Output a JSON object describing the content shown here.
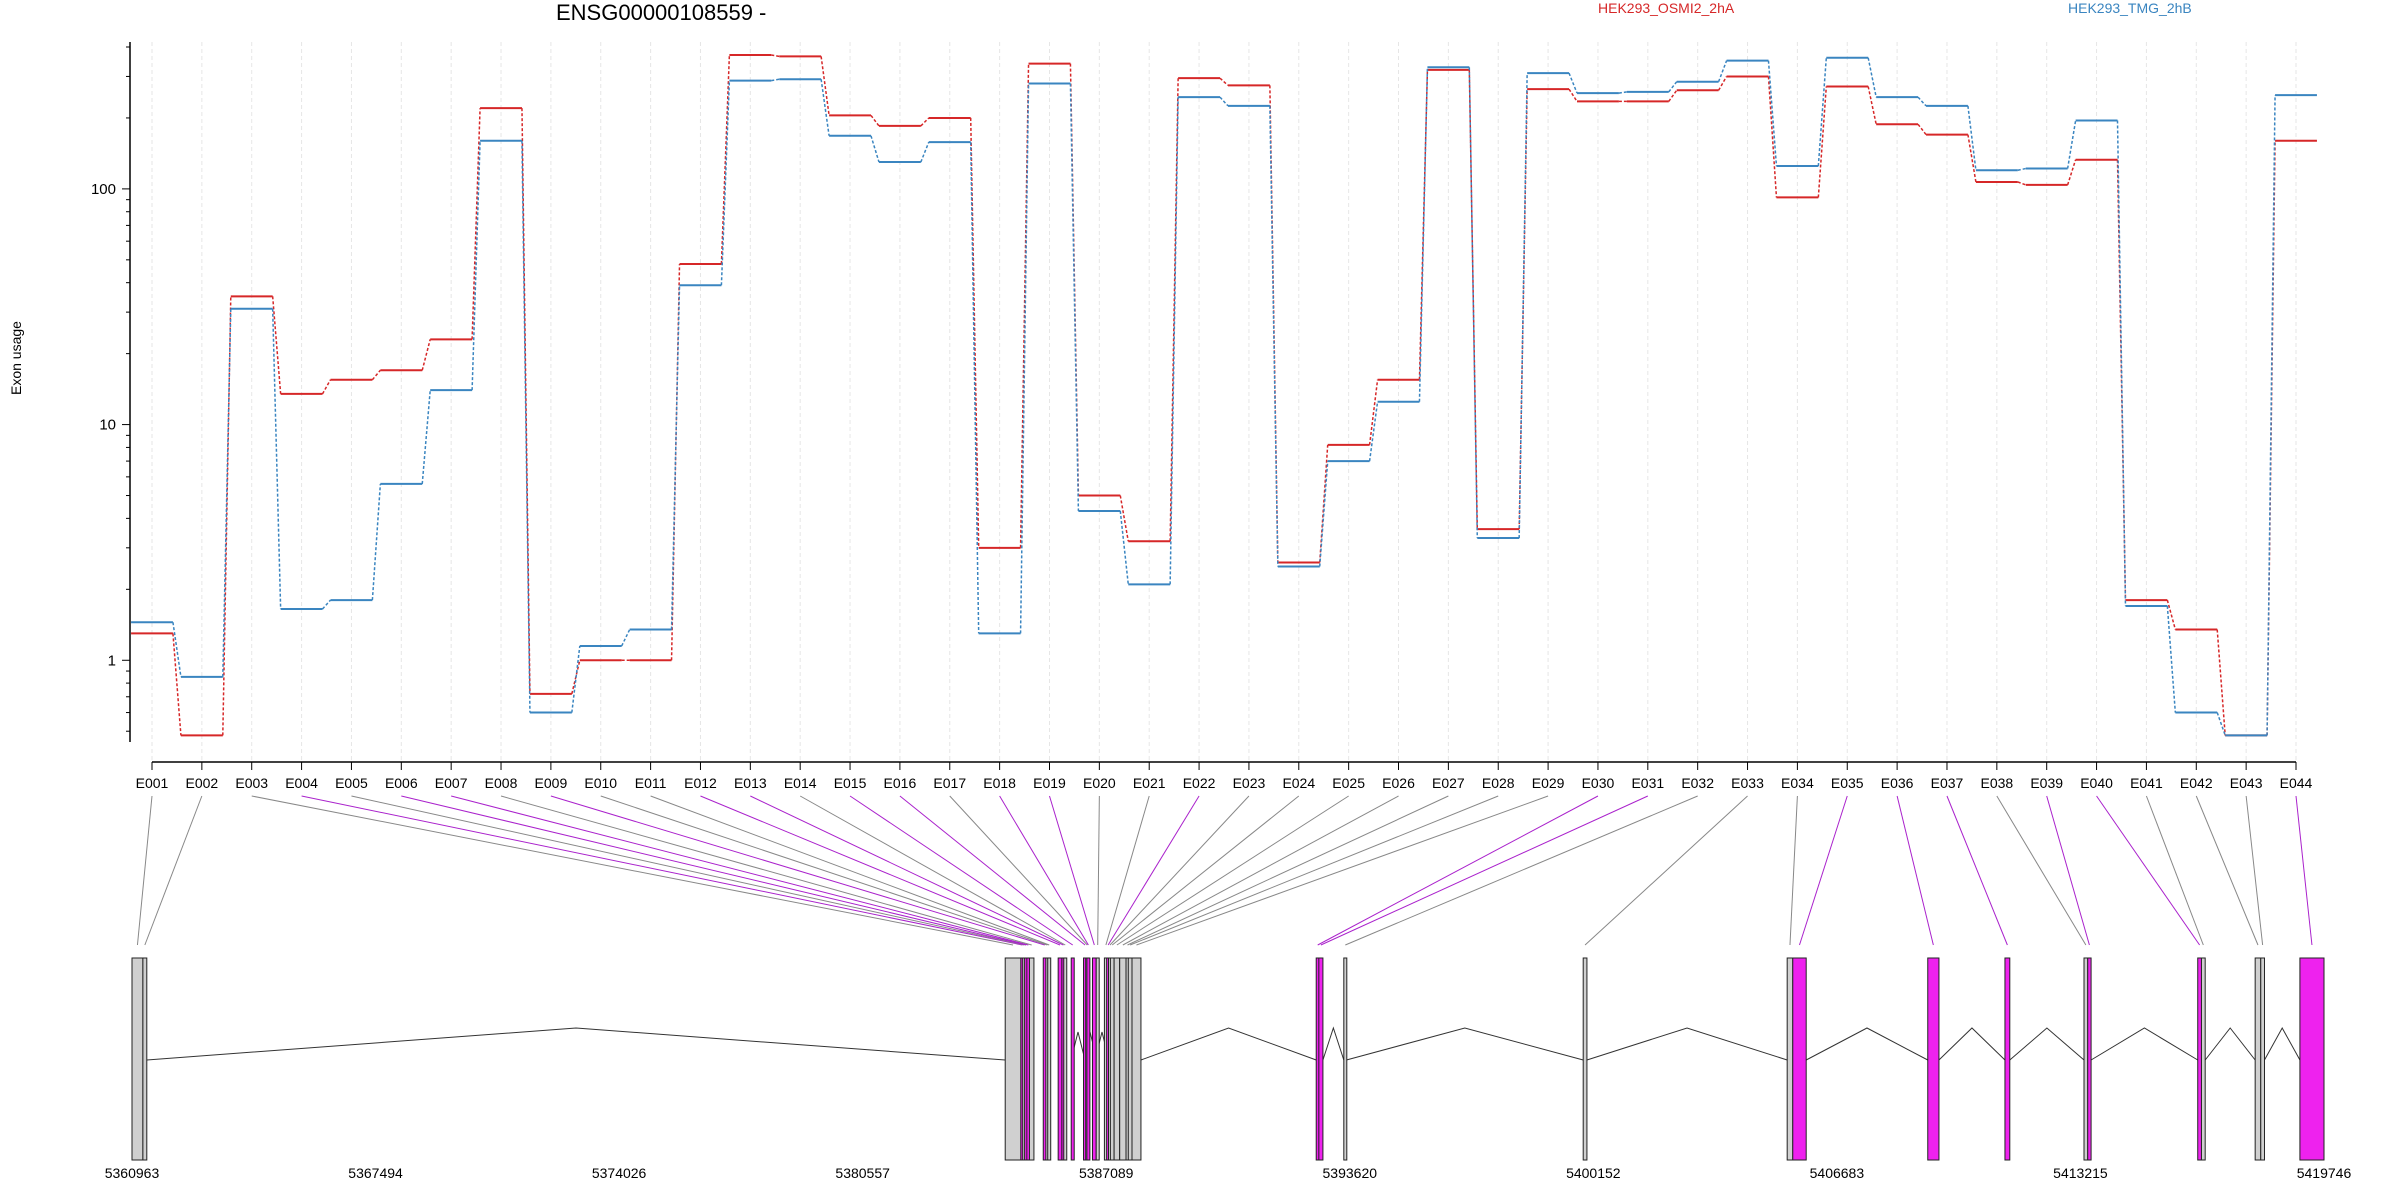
{
  "chart_data": {
    "type": "line",
    "title": "ENSG00000108559 -",
    "ylabel": "Exon usage",
    "yscale": "log",
    "ylim": [
      0.45,
      420
    ],
    "yticks": [
      {
        "value": 1,
        "label": "1"
      },
      {
        "value": 10,
        "label": "10"
      },
      {
        "value": 100,
        "label": "100"
      }
    ],
    "categories": [
      "E001",
      "E002",
      "E003",
      "E004",
      "E005",
      "E006",
      "E007",
      "E008",
      "E009",
      "E010",
      "E011",
      "E012",
      "E013",
      "E014",
      "E015",
      "E016",
      "E017",
      "E018",
      "E019",
      "E020",
      "E021",
      "E022",
      "E023",
      "E024",
      "E025",
      "E026",
      "E027",
      "E028",
      "E029",
      "E030",
      "E031",
      "E032",
      "E033",
      "E034",
      "E035",
      "E036",
      "E037",
      "E038",
      "E039",
      "E040",
      "E041",
      "E042",
      "E043",
      "E044"
    ],
    "series": [
      {
        "name": "HEK293_OSMI2_2hA",
        "color": "#d62728",
        "values": [
          1.3,
          0.48,
          35,
          13.5,
          15.5,
          17,
          23,
          220,
          0.72,
          1.0,
          1.0,
          48,
          370,
          365,
          205,
          185,
          200,
          3.0,
          340,
          5.0,
          3.2,
          295,
          275,
          2.6,
          8.2,
          15.5,
          320,
          3.6,
          265,
          235,
          235,
          262,
          300,
          92,
          272,
          188,
          170,
          107,
          104,
          133,
          1.8,
          1.35,
          0.48,
          160
        ]
      },
      {
        "name": "HEK293_TMG_2hB",
        "color": "#3a85c0",
        "values": [
          1.45,
          0.85,
          31,
          1.65,
          1.8,
          5.6,
          14,
          160,
          0.6,
          1.15,
          1.35,
          39,
          288,
          292,
          168,
          130,
          158,
          1.3,
          280,
          4.3,
          2.1,
          245,
          225,
          2.5,
          7.0,
          12.5,
          328,
          3.3,
          310,
          255,
          258,
          285,
          350,
          125,
          360,
          245,
          225,
          120,
          122,
          195,
          1.7,
          0.6,
          0.48,
          250
        ]
      }
    ],
    "gene_model": {
      "coordinate_labels": [
        "5360963",
        "5367494",
        "5374026",
        "5380557",
        "5387089",
        "5393620",
        "5400152",
        "5406683",
        "5413215",
        "5419746"
      ],
      "highlight_color": "#ee22ee",
      "exons": [
        {
          "id": "E001",
          "start": 5360963,
          "end": 5361255,
          "hi": false
        },
        {
          "id": "E002",
          "start": 5361255,
          "end": 5361360,
          "hi": false
        },
        {
          "id": "E003",
          "start": 5384380,
          "end": 5384800,
          "hi": false
        },
        {
          "id": "E004",
          "start": 5384800,
          "end": 5384850,
          "hi": true
        },
        {
          "id": "E005",
          "start": 5384850,
          "end": 5384900,
          "hi": false
        },
        {
          "id": "E006",
          "start": 5384900,
          "end": 5384960,
          "hi": true
        },
        {
          "id": "E007",
          "start": 5384960,
          "end": 5385030,
          "hi": true
        },
        {
          "id": "E008",
          "start": 5385030,
          "end": 5385150,
          "hi": false
        },
        {
          "id": "E009",
          "start": 5385400,
          "end": 5385470,
          "hi": true
        },
        {
          "id": "E010",
          "start": 5385470,
          "end": 5385520,
          "hi": false
        },
        {
          "id": "E011",
          "start": 5385520,
          "end": 5385580,
          "hi": false
        },
        {
          "id": "E012",
          "start": 5385800,
          "end": 5385900,
          "hi": true
        },
        {
          "id": "E013",
          "start": 5385900,
          "end": 5385950,
          "hi": true
        },
        {
          "id": "E014",
          "start": 5385950,
          "end": 5385990,
          "hi": false
        },
        {
          "id": "E015",
          "start": 5386150,
          "end": 5386230,
          "hi": true
        },
        {
          "id": "E016",
          "start": 5386480,
          "end": 5386540,
          "hi": true
        },
        {
          "id": "E017",
          "start": 5386540,
          "end": 5386570,
          "hi": false
        },
        {
          "id": "E018",
          "start": 5386570,
          "end": 5386620,
          "hi": true
        },
        {
          "id": "E019",
          "start": 5386720,
          "end": 5386820,
          "hi": true
        },
        {
          "id": "E020",
          "start": 5386820,
          "end": 5386880,
          "hi": false
        },
        {
          "id": "E021",
          "start": 5387040,
          "end": 5387100,
          "hi": false
        },
        {
          "id": "E022",
          "start": 5387100,
          "end": 5387150,
          "hi": true
        },
        {
          "id": "E023",
          "start": 5387150,
          "end": 5387190,
          "hi": false
        },
        {
          "id": "E024",
          "start": 5387200,
          "end": 5387300,
          "hi": false
        },
        {
          "id": "E025",
          "start": 5387300,
          "end": 5387450,
          "hi": false
        },
        {
          "id": "E026",
          "start": 5387450,
          "end": 5387620,
          "hi": false
        },
        {
          "id": "E027",
          "start": 5387620,
          "end": 5387680,
          "hi": false
        },
        {
          "id": "E028",
          "start": 5387680,
          "end": 5387780,
          "hi": false
        },
        {
          "id": "E029",
          "start": 5387780,
          "end": 5388020,
          "hi": false
        },
        {
          "id": "E030",
          "start": 5392720,
          "end": 5392790,
          "hi": true
        },
        {
          "id": "E031",
          "start": 5392790,
          "end": 5392900,
          "hi": true
        },
        {
          "id": "E032",
          "start": 5393460,
          "end": 5393530,
          "hi": false
        },
        {
          "id": "E033",
          "start": 5399880,
          "end": 5399980,
          "hi": false
        },
        {
          "id": "E034",
          "start": 5405350,
          "end": 5405500,
          "hi": false
        },
        {
          "id": "E035",
          "start": 5405500,
          "end": 5405860,
          "hi": true
        },
        {
          "id": "E036",
          "start": 5409120,
          "end": 5409420,
          "hi": true
        },
        {
          "id": "E037",
          "start": 5411190,
          "end": 5411320,
          "hi": true
        },
        {
          "id": "E038",
          "start": 5413310,
          "end": 5413410,
          "hi": false
        },
        {
          "id": "E039",
          "start": 5413410,
          "end": 5413500,
          "hi": true
        },
        {
          "id": "E040",
          "start": 5416360,
          "end": 5416460,
          "hi": true
        },
        {
          "id": "E041",
          "start": 5416460,
          "end": 5416560,
          "hi": false
        },
        {
          "id": "E042",
          "start": 5417900,
          "end": 5418050,
          "hi": false
        },
        {
          "id": "E043",
          "start": 5418050,
          "end": 5418150,
          "hi": false
        },
        {
          "id": "E044",
          "start": 5419100,
          "end": 5419746,
          "hi": true
        }
      ],
      "intron_blocks": [
        [
          5361360,
          5384380
        ],
        [
          5388020,
          5392720
        ],
        [
          5392900,
          5393460
        ],
        [
          5393530,
          5399880
        ],
        [
          5399980,
          5405350
        ],
        [
          5405860,
          5409120
        ],
        [
          5409420,
          5411190
        ],
        [
          5411320,
          5413310
        ],
        [
          5413500,
          5416360
        ],
        [
          5416560,
          5417900
        ],
        [
          5418150,
          5419100
        ]
      ]
    }
  }
}
